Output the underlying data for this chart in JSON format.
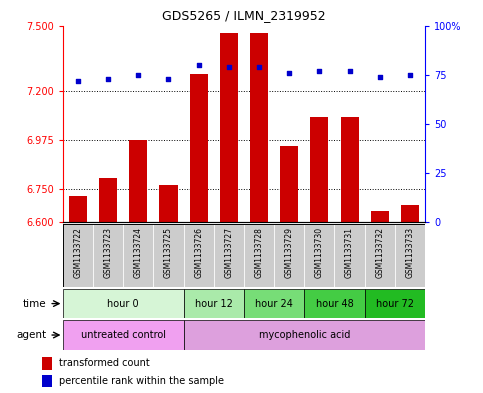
{
  "title": "GDS5265 / ILMN_2319952",
  "samples": [
    "GSM1133722",
    "GSM1133723",
    "GSM1133724",
    "GSM1133725",
    "GSM1133726",
    "GSM1133727",
    "GSM1133728",
    "GSM1133729",
    "GSM1133730",
    "GSM1133731",
    "GSM1133732",
    "GSM1133733"
  ],
  "bar_values": [
    6.72,
    6.8,
    6.975,
    6.77,
    7.28,
    7.465,
    7.465,
    6.95,
    7.08,
    7.08,
    6.65,
    6.68
  ],
  "dot_values": [
    72,
    73,
    75,
    73,
    80,
    79,
    79,
    76,
    77,
    77,
    74,
    75
  ],
  "ylim_left": [
    6.6,
    7.5
  ],
  "ylim_right": [
    0,
    100
  ],
  "yticks_left": [
    6.6,
    6.75,
    6.975,
    7.2,
    7.5
  ],
  "yticks_right": [
    0,
    25,
    50,
    75,
    100
  ],
  "hlines": [
    7.2,
    6.975,
    6.75
  ],
  "bar_color": "#cc0000",
  "dot_color": "#0000cc",
  "bar_bottom": 6.6,
  "time_groups": [
    {
      "label": "hour 0",
      "start": 0,
      "end": 4,
      "color": "#d6f5d6"
    },
    {
      "label": "hour 12",
      "start": 4,
      "end": 6,
      "color": "#aaeaaa"
    },
    {
      "label": "hour 24",
      "start": 6,
      "end": 8,
      "color": "#77dd77"
    },
    {
      "label": "hour 48",
      "start": 8,
      "end": 10,
      "color": "#44cc44"
    },
    {
      "label": "hour 72",
      "start": 10,
      "end": 12,
      "color": "#22bb22"
    }
  ],
  "agent_groups": [
    {
      "label": "untreated control",
      "start": 0,
      "end": 4,
      "color": "#f0a0f0"
    },
    {
      "label": "mycophenolic acid",
      "start": 4,
      "end": 12,
      "color": "#dda0dd"
    }
  ],
  "legend_bar_label": "transformed count",
  "legend_dot_label": "percentile rank within the sample",
  "xlabel_time": "time",
  "xlabel_agent": "agent",
  "sample_box_color": "#cccccc",
  "plot_border_color": "#000000"
}
